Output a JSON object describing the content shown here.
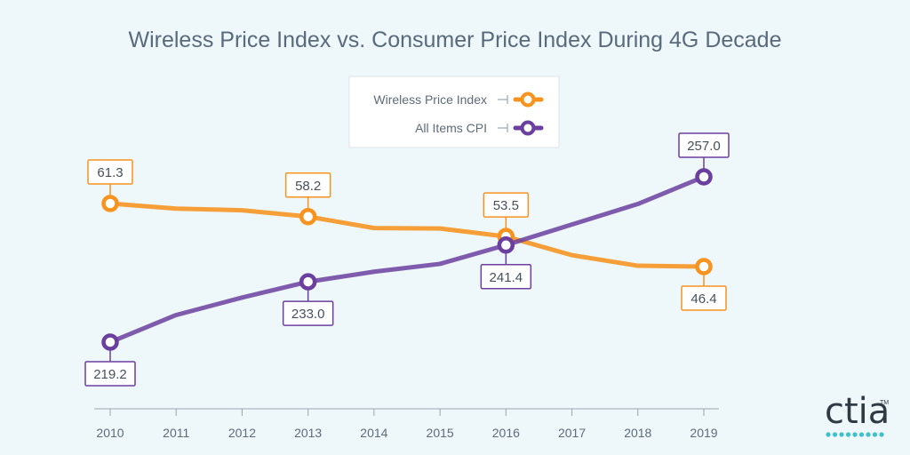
{
  "chart_data": {
    "type": "line",
    "title": "Wireless Price Index vs. Consumer Price Index During 4G Decade",
    "x": [
      "2010",
      "2011",
      "2012",
      "2013",
      "2014",
      "2015",
      "2016",
      "2017",
      "2018",
      "2019"
    ],
    "series": [
      {
        "name": "Wireless Price Index",
        "color": "#f7931e",
        "values": [
          61.3,
          60.1,
          59.7,
          58.2,
          55.5,
          55.4,
          53.5,
          49.1,
          46.6,
          46.4
        ],
        "labeled": [
          {
            "index": 0,
            "text": "61.3",
            "position": "above"
          },
          {
            "index": 3,
            "text": "58.2",
            "position": "above"
          },
          {
            "index": 6,
            "text": "53.5",
            "position": "above"
          },
          {
            "index": 9,
            "text": "46.4",
            "position": "below"
          }
        ]
      },
      {
        "name": "All Items CPI",
        "color": "#6b3f9f",
        "values": [
          219.2,
          225.4,
          229.4,
          233.0,
          235.3,
          237.1,
          241.4,
          246.1,
          250.8,
          257.0
        ],
        "labeled": [
          {
            "index": 0,
            "text": "219.2",
            "position": "below"
          },
          {
            "index": 3,
            "text": "233.0",
            "position": "below"
          },
          {
            "index": 6,
            "text": "241.4",
            "position": "below"
          },
          {
            "index": 9,
            "text": "257.0",
            "position": "above"
          }
        ]
      }
    ],
    "ylim_wireless": [
      40,
      65
    ],
    "ylim_cpi": [
      210,
      265
    ],
    "grid": false,
    "legend_position": "top-center"
  },
  "logo": {
    "text": "ctia",
    "tm": "TM",
    "dot_color": "#3fc1c9"
  }
}
